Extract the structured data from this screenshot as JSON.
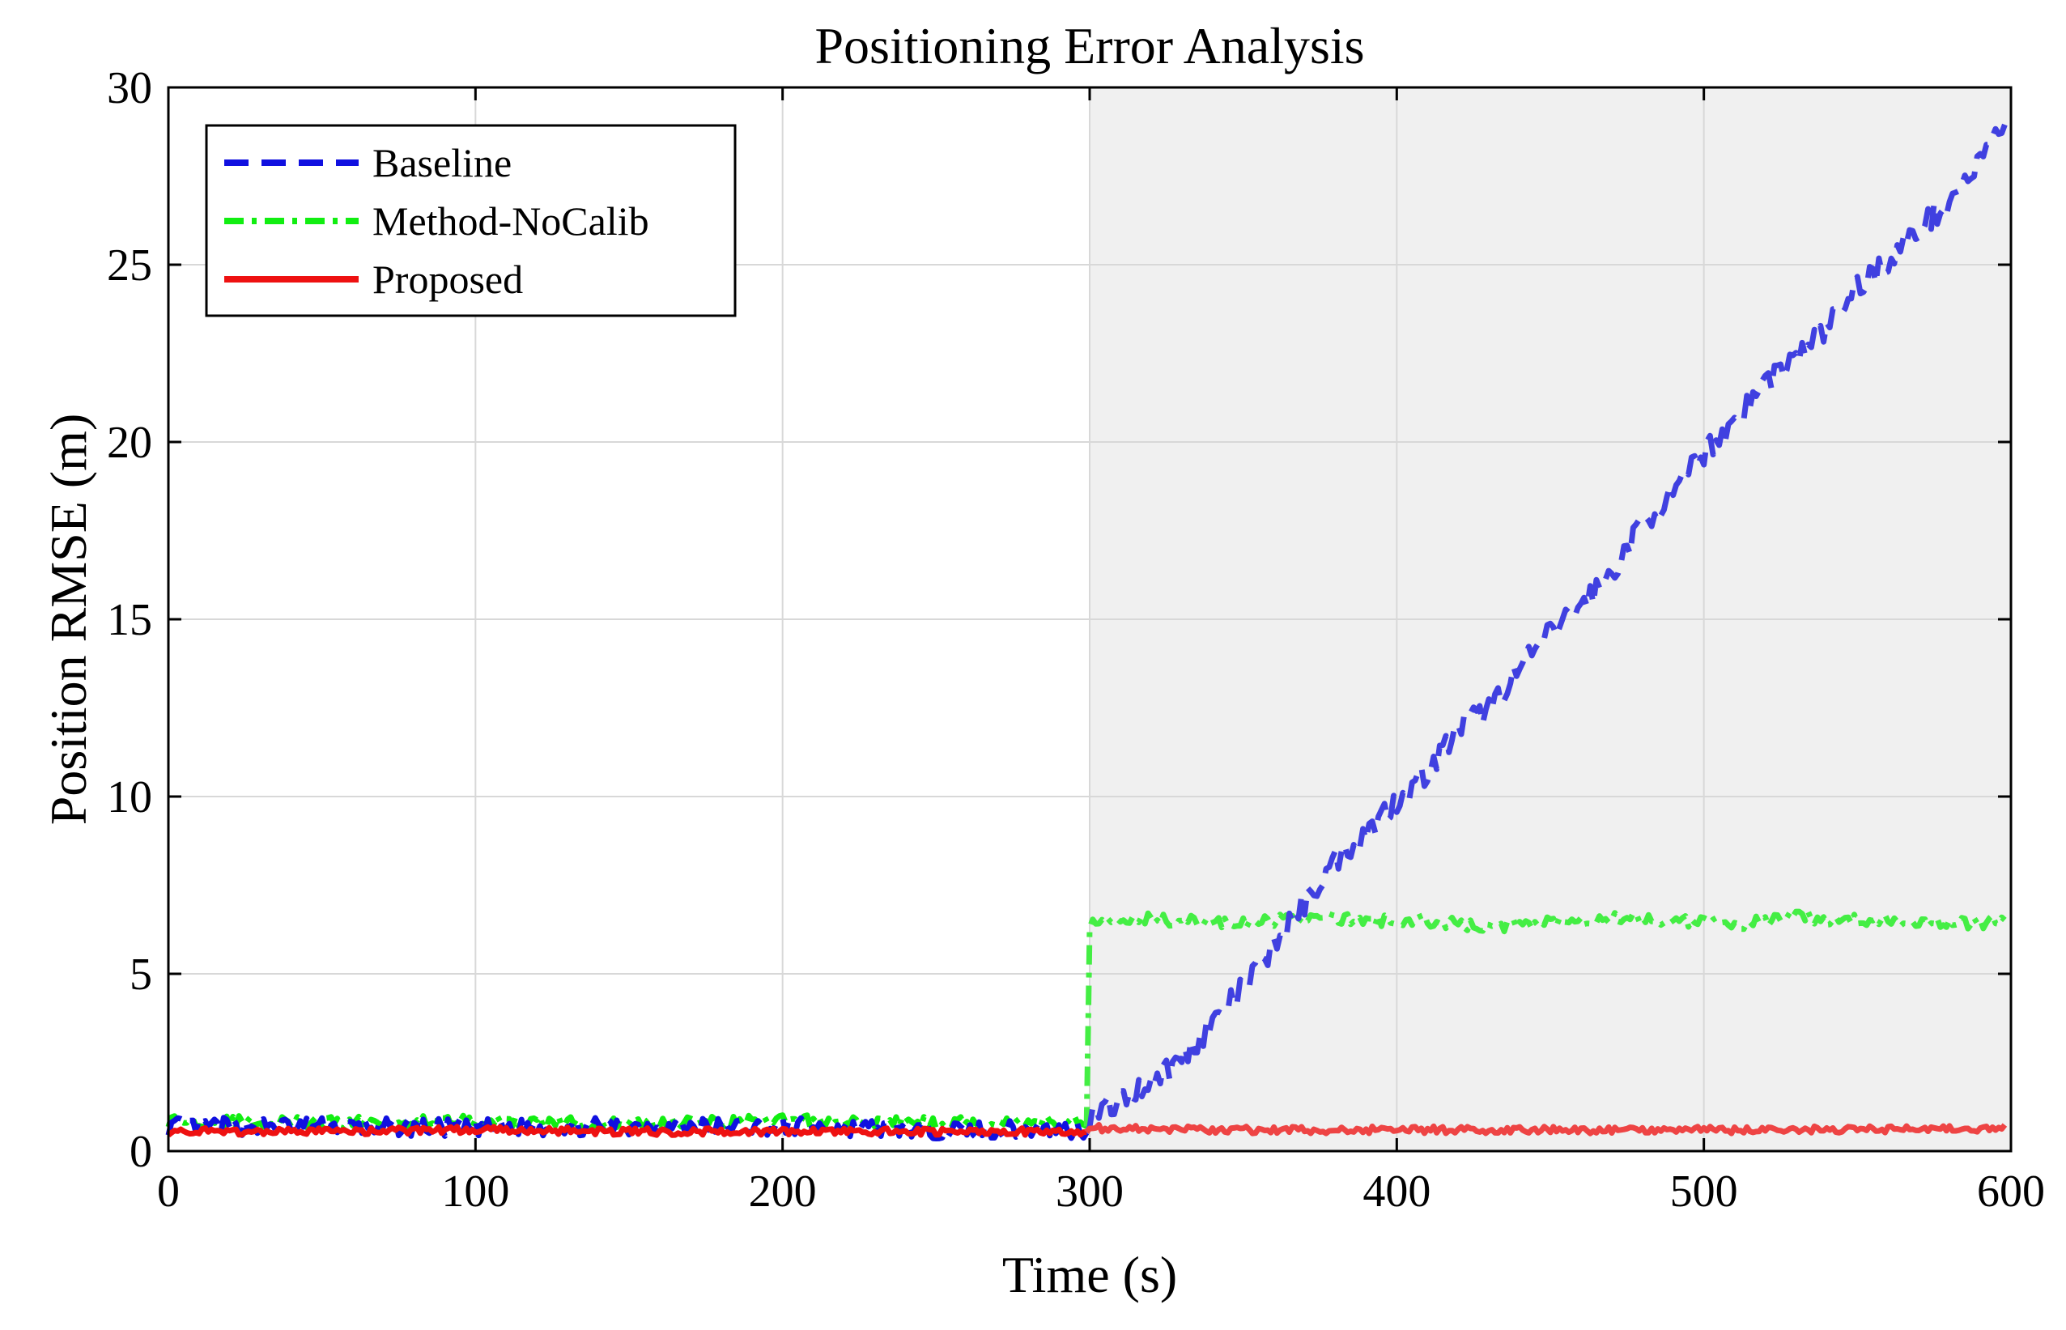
{
  "chart_data": {
    "type": "line",
    "title": "Positioning Error Analysis",
    "xlabel": "Time (s)",
    "ylabel": "Position RMSE (m)",
    "xlim": [
      0,
      600
    ],
    "ylim": [
      0,
      30
    ],
    "xticks": [
      0,
      100,
      200,
      300,
      400,
      500,
      600
    ],
    "yticks": [
      0,
      5,
      10,
      15,
      20,
      25,
      30
    ],
    "grid": true,
    "legend_position": "top-left",
    "shaded_region": {
      "x_start": 300,
      "x_end": 600,
      "color": "#f0f0f0"
    },
    "series": [
      {
        "name": "Baseline",
        "color": "#1010e0",
        "color_after_shading": "#4040e0",
        "style": "dashed",
        "x": [
          0,
          50,
          100,
          150,
          200,
          250,
          299,
          300,
          310,
          320,
          330,
          340,
          350,
          360,
          370,
          380,
          390,
          400,
          410,
          420,
          430,
          440,
          450,
          460,
          470,
          480,
          490,
          500,
          510,
          520,
          530,
          540,
          550,
          560,
          570,
          580,
          590,
          598
        ],
        "y": [
          0.7,
          0.7,
          0.65,
          0.7,
          0.7,
          0.6,
          0.6,
          1.0,
          1.4,
          2.0,
          2.6,
          3.6,
          4.6,
          5.8,
          7.0,
          8.2,
          9.0,
          9.9,
          10.7,
          11.9,
          12.5,
          13.6,
          14.6,
          15.4,
          16.3,
          17.7,
          18.5,
          19.7,
          20.6,
          21.7,
          22.4,
          23.2,
          24.4,
          25.1,
          26.0,
          26.8,
          27.9,
          29.0
        ]
      },
      {
        "name": "Method-NoCalib",
        "color": "#11ee11",
        "color_after_shading": "#44ee44",
        "style": "dashdot",
        "x": [
          0,
          50,
          100,
          150,
          200,
          250,
          299,
          300,
          310,
          330,
          350,
          370,
          390,
          410,
          430,
          450,
          470,
          490,
          510,
          530,
          550,
          570,
          590,
          598
        ],
        "y": [
          0.85,
          0.8,
          0.85,
          0.8,
          0.85,
          0.8,
          0.85,
          6.4,
          6.6,
          6.5,
          6.4,
          6.6,
          6.5,
          6.5,
          6.3,
          6.5,
          6.6,
          6.5,
          6.4,
          6.6,
          6.5,
          6.5,
          6.4,
          6.6
        ]
      },
      {
        "name": "Proposed",
        "color": "#ee1111",
        "color_after_shading": "#ee4444",
        "style": "solid",
        "x": [
          0,
          50,
          100,
          150,
          200,
          250,
          299,
          300,
          350,
          400,
          450,
          500,
          550,
          598
        ],
        "y": [
          0.55,
          0.55,
          0.6,
          0.55,
          0.55,
          0.55,
          0.55,
          0.65,
          0.6,
          0.6,
          0.6,
          0.6,
          0.6,
          0.65
        ]
      }
    ]
  }
}
